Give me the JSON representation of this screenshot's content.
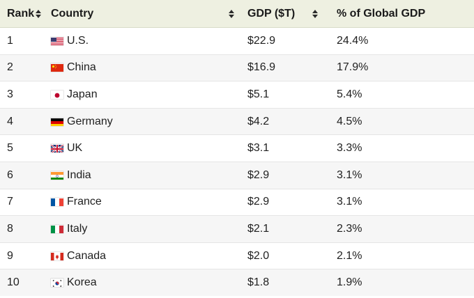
{
  "table": {
    "headers": {
      "rank": "Rank",
      "country": "Country",
      "gdp": "GDP ($T)",
      "pct": "% of Global GDP"
    },
    "rows": [
      {
        "rank": "1",
        "country": "U.S.",
        "flag": "us-flag",
        "gdp": "$22.9",
        "pct": "24.4%"
      },
      {
        "rank": "2",
        "country": "China",
        "flag": "china-flag",
        "gdp": "$16.9",
        "pct": "17.9%"
      },
      {
        "rank": "3",
        "country": "Japan",
        "flag": "japan-flag",
        "gdp": "$5.1",
        "pct": "5.4%"
      },
      {
        "rank": "4",
        "country": "Germany",
        "flag": "germany-flag",
        "gdp": "$4.2",
        "pct": "4.5%"
      },
      {
        "rank": "5",
        "country": "UK",
        "flag": "uk-flag",
        "gdp": "$3.1",
        "pct": "3.3%"
      },
      {
        "rank": "6",
        "country": "India",
        "flag": "india-flag",
        "gdp": "$2.9",
        "pct": "3.1%"
      },
      {
        "rank": "7",
        "country": "France",
        "flag": "france-flag",
        "gdp": "$2.9",
        "pct": "3.1%"
      },
      {
        "rank": "8",
        "country": "Italy",
        "flag": "italy-flag",
        "gdp": "$2.1",
        "pct": "2.3%"
      },
      {
        "rank": "9",
        "country": "Canada",
        "flag": "canada-flag",
        "gdp": "$2.0",
        "pct": "2.1%"
      },
      {
        "rank": "10",
        "country": "Korea",
        "flag": "korea-flag",
        "gdp": "$1.8",
        "pct": "1.9%"
      }
    ]
  },
  "colors": {
    "header_bg": "#eef0e1",
    "row_alt_bg": "#f6f6f6",
    "text": "#1f1f1f"
  }
}
